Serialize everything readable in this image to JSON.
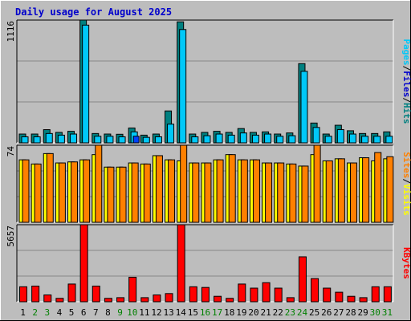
{
  "chart_data": [
    {
      "type": "bar",
      "title": "Daily usage for August 2025",
      "panel": "top",
      "ymax_label": "1116",
      "ylim": [
        0,
        1116
      ],
      "right_label": [
        "Pages",
        "/",
        "Files",
        "/",
        "Hits"
      ],
      "categories": [
        "1",
        "2",
        "3",
        "4",
        "5",
        "6",
        "7",
        "8",
        "9",
        "10",
        "11",
        "12",
        "13",
        "14",
        "15",
        "16",
        "17",
        "18",
        "19",
        "20",
        "21",
        "22",
        "23",
        "24",
        "25",
        "26",
        "27",
        "28",
        "29",
        "30",
        "31"
      ],
      "weekend_days": [
        "2",
        "3",
        "9",
        "10",
        "16",
        "17",
        "23",
        "24",
        "30",
        "31"
      ],
      "series": [
        {
          "name": "Hits",
          "values": [
            80,
            80,
            120,
            95,
            105,
            1116,
            85,
            80,
            78,
            135,
            70,
            80,
            290,
            1100,
            80,
            95,
            105,
            95,
            130,
            95,
            100,
            80,
            90,
            720,
            180,
            80,
            160,
            110,
            85,
            85,
            100
          ]
        },
        {
          "name": "Files",
          "values": [
            55,
            55,
            85,
            70,
            80,
            1070,
            60,
            60,
            55,
            100,
            50,
            55,
            170,
            1030,
            55,
            65,
            80,
            70,
            90,
            70,
            80,
            60,
            65,
            650,
            140,
            60,
            120,
            80,
            60,
            60,
            60
          ]
        },
        {
          "name": "Pages",
          "values": [
            0,
            0,
            0,
            0,
            0,
            0,
            0,
            0,
            0,
            60,
            0,
            0,
            0,
            0,
            0,
            0,
            0,
            0,
            0,
            0,
            0,
            0,
            0,
            0,
            0,
            0,
            0,
            0,
            0,
            0,
            0
          ]
        }
      ],
      "colors": {
        "Hits": "#008080",
        "Files": "#00c8f8",
        "Pages": "#0040ff"
      },
      "label_colors": {
        "Pages": "#00c8f8",
        "Files": "#0000cc",
        "Hits": "#008080",
        "sep": "#000000"
      },
      "grid": true
    },
    {
      "type": "bar",
      "panel": "middle",
      "ymax_label": "74",
      "ylim": [
        0,
        74
      ],
      "right_label": [
        "Sites",
        "/",
        "Visits"
      ],
      "categories": [
        "1",
        "2",
        "3",
        "4",
        "5",
        "6",
        "7",
        "8",
        "9",
        "10",
        "11",
        "12",
        "13",
        "14",
        "15",
        "16",
        "17",
        "18",
        "19",
        "20",
        "21",
        "22",
        "23",
        "24",
        "25",
        "26",
        "27",
        "28",
        "29",
        "30",
        "31"
      ],
      "series": [
        {
          "name": "Visits",
          "values": [
            60,
            56,
            66,
            57,
            58,
            60,
            65,
            53,
            53,
            57,
            56,
            64,
            60,
            59,
            57,
            57,
            60,
            65,
            60,
            60,
            57,
            57,
            56,
            54,
            65,
            59,
            61,
            57,
            62,
            59,
            61
          ]
        },
        {
          "name": "Sites",
          "values": [
            60,
            56,
            66,
            57,
            58,
            60,
            74,
            53,
            53,
            57,
            56,
            64,
            60,
            74,
            57,
            57,
            60,
            65,
            60,
            60,
            57,
            57,
            56,
            54,
            74,
            59,
            61,
            57,
            62,
            67,
            63
          ]
        }
      ],
      "colors": {
        "Visits": "#ffff00",
        "Sites": "#ff8000"
      },
      "label_colors": {
        "Sites": "#ff8000",
        "Visits": "#ffff00",
        "sep": "#000000"
      },
      "grid": true
    },
    {
      "type": "bar",
      "panel": "bottom",
      "ymax_label": "5657",
      "ylim": [
        0,
        5657
      ],
      "right_label": [
        "KBytes"
      ],
      "categories": [
        "1",
        "2",
        "3",
        "4",
        "5",
        "6",
        "7",
        "8",
        "9",
        "10",
        "11",
        "12",
        "13",
        "14",
        "15",
        "16",
        "17",
        "18",
        "19",
        "20",
        "21",
        "22",
        "23",
        "24",
        "25",
        "26",
        "27",
        "28",
        "29",
        "30",
        "31"
      ],
      "series": [
        {
          "name": "KBytes",
          "values": [
            1100,
            1150,
            500,
            250,
            1300,
            5657,
            1150,
            250,
            300,
            1800,
            300,
            500,
            600,
            5657,
            1100,
            1050,
            400,
            250,
            1300,
            1000,
            1400,
            1000,
            300,
            3300,
            1700,
            1000,
            700,
            400,
            300,
            1100,
            1100
          ]
        }
      ],
      "colors": {
        "KBytes": "#ff0000"
      },
      "label_colors": {
        "KBytes": "#ff0000"
      },
      "grid": true
    }
  ]
}
